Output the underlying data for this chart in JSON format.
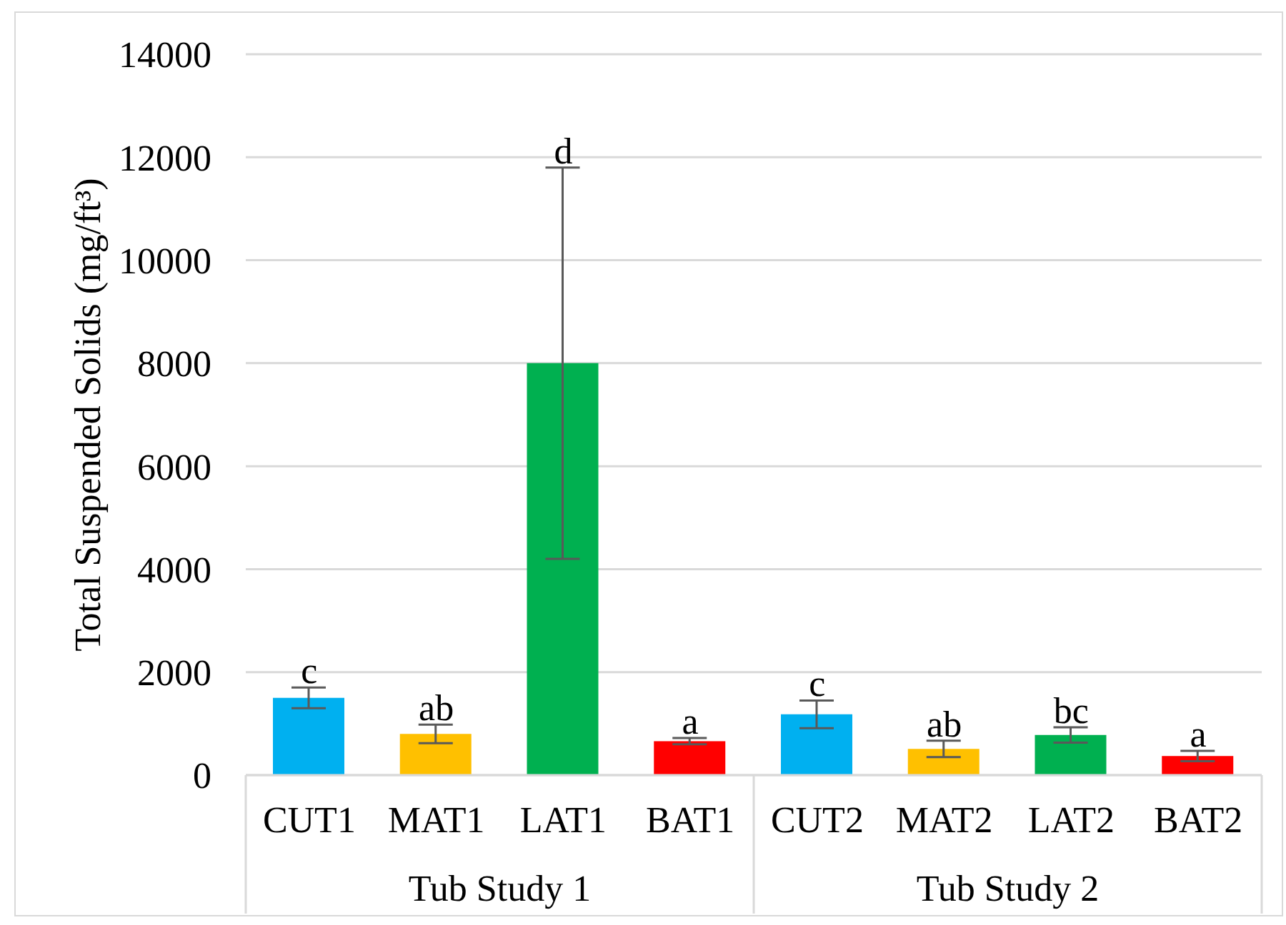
{
  "chart_data": {
    "type": "bar",
    "ylabel": "Total Suspended Solids (mg/ft³)",
    "categories": [
      "CUT1",
      "MAT1",
      "LAT1",
      "BAT1",
      "CUT2",
      "MAT2",
      "LAT2",
      "BAT2"
    ],
    "values": [
      1500,
      800,
      8000,
      660,
      1180,
      510,
      780,
      370
    ],
    "colors": [
      "#00b0f0",
      "#ffc000",
      "#00b050",
      "#ff0000",
      "#00b0f0",
      "#ffc000",
      "#00b050",
      "#ff0000"
    ],
    "errors": [
      200,
      180,
      3800,
      60,
      270,
      160,
      150,
      100
    ],
    "ylim": [
      0,
      14000
    ],
    "yticks": [
      0,
      2000,
      4000,
      6000,
      8000,
      10000,
      12000,
      14000
    ],
    "grid": "y",
    "annotations": [
      {
        "text": "c",
        "x": "CUT1",
        "y": 1700
      },
      {
        "text": "ab",
        "x": "MAT1",
        "y": 980
      },
      {
        "text": "d",
        "x": "LAT1",
        "y": 11800
      },
      {
        "text": "a",
        "x": "BAT1",
        "y": 720
      },
      {
        "text": "c",
        "x": "CUT2",
        "y": 1450
      },
      {
        "text": "ab",
        "x": "MAT2",
        "y": 670
      },
      {
        "text": "bc",
        "x": "LAT2",
        "y": 930
      },
      {
        "text": "a",
        "x": "BAT2",
        "y": 470
      },
      "Tub Study 1",
      "Tub Study 2"
    ]
  }
}
